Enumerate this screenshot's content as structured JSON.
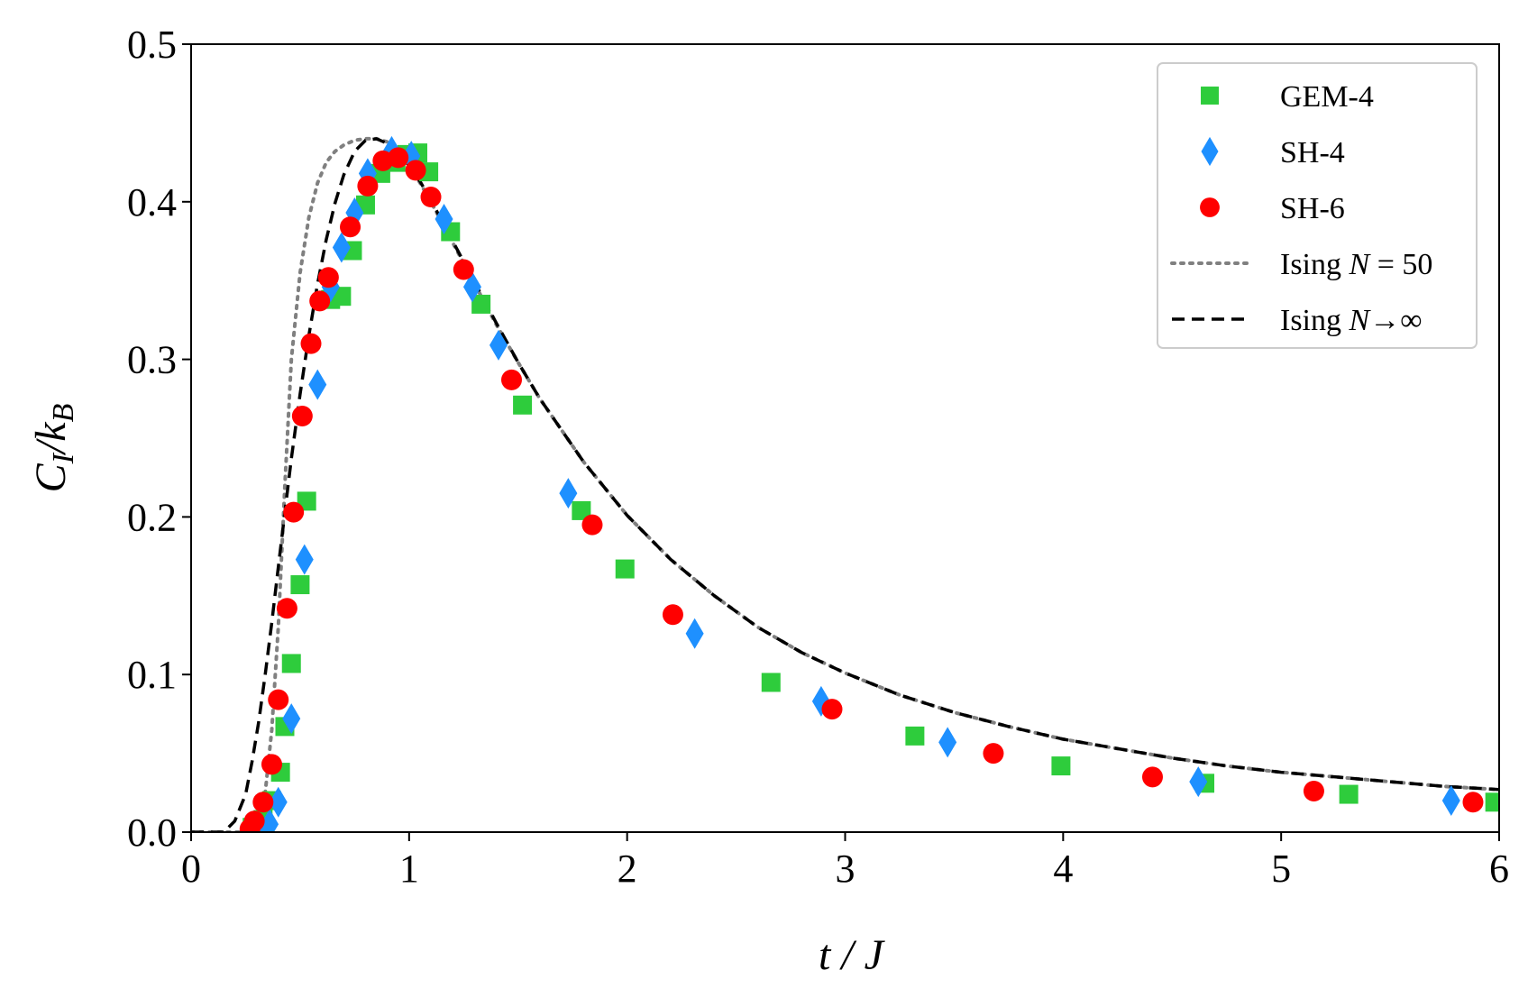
{
  "chart_data": {
    "type": "scatter",
    "xlabel": "t / J",
    "ylabel": "C_I / k_B",
    "xlim": [
      0,
      6
    ],
    "ylim": [
      0,
      0.5
    ],
    "x_ticks": [
      "0",
      "1",
      "2",
      "3",
      "4",
      "5",
      "6"
    ],
    "y_ticks": [
      "0.0",
      "0.1",
      "0.2",
      "0.3",
      "0.4",
      "0.5"
    ],
    "grid": false,
    "legend_position": "top-right",
    "series": [
      {
        "name": "GEM-4",
        "kind": "markers",
        "marker": "square",
        "color": "#2ecc3c",
        "x": [
          0.28,
          0.33,
          0.37,
          0.41,
          0.43,
          0.46,
          0.5,
          0.53,
          0.64,
          0.69,
          0.74,
          0.8,
          0.87,
          0.94,
          0.99,
          1.04,
          1.09,
          1.19,
          1.33,
          1.52,
          1.79,
          1.99,
          2.66,
          3.32,
          3.99,
          4.65,
          5.31,
          5.98
        ],
        "y": [
          0.003,
          0.008,
          0.02,
          0.038,
          0.067,
          0.107,
          0.157,
          0.21,
          0.338,
          0.34,
          0.369,
          0.398,
          0.418,
          0.425,
          0.43,
          0.431,
          0.419,
          0.381,
          0.335,
          0.271,
          0.204,
          0.167,
          0.095,
          0.061,
          0.042,
          0.031,
          0.024,
          0.019
        ]
      },
      {
        "name": "SH-4",
        "kind": "markers",
        "marker": "diamond",
        "color": "#1e90ff",
        "x": [
          0.32,
          0.36,
          0.4,
          0.46,
          0.52,
          0.58,
          0.64,
          0.69,
          0.75,
          0.81,
          0.92,
          1.01,
          1.16,
          1.29,
          1.41,
          1.73,
          2.31,
          2.89,
          3.47,
          4.62,
          5.78
        ],
        "y": [
          0.002,
          0.005,
          0.019,
          0.072,
          0.173,
          0.284,
          0.346,
          0.371,
          0.393,
          0.418,
          0.432,
          0.429,
          0.389,
          0.346,
          0.309,
          0.215,
          0.126,
          0.083,
          0.057,
          0.032,
          0.02
        ]
      },
      {
        "name": "SH-6",
        "kind": "markers",
        "marker": "circle",
        "color": "#ff0000",
        "x": [
          0.27,
          0.29,
          0.33,
          0.37,
          0.4,
          0.44,
          0.47,
          0.51,
          0.55,
          0.59,
          0.63,
          0.73,
          0.81,
          0.88,
          0.95,
          1.03,
          1.1,
          1.25,
          1.47,
          1.84,
          2.21,
          2.94,
          3.68,
          4.41,
          5.15,
          5.88
        ],
        "y": [
          0.002,
          0.007,
          0.019,
          0.043,
          0.084,
          0.142,
          0.203,
          0.264,
          0.31,
          0.337,
          0.352,
          0.384,
          0.41,
          0.426,
          0.428,
          0.42,
          0.403,
          0.357,
          0.287,
          0.195,
          0.138,
          0.078,
          0.05,
          0.035,
          0.026,
          0.019
        ]
      },
      {
        "name": "Ising N = 50",
        "kind": "line",
        "style": "dotted",
        "color": "#808080",
        "x": [
          0.0,
          0.15,
          0.22,
          0.28,
          0.31,
          0.34,
          0.37,
          0.4,
          0.43,
          0.46,
          0.5,
          0.54,
          0.58,
          0.62,
          0.66,
          0.7,
          0.75,
          0.8,
          0.85,
          0.9,
          0.95,
          1.0,
          1.05,
          1.1,
          1.2,
          1.3,
          1.4,
          1.5,
          1.6,
          1.8,
          2.0,
          2.2,
          2.4,
          2.6,
          2.8,
          3.0,
          3.25,
          3.5,
          3.75,
          4.0,
          4.25,
          4.5,
          4.75,
          5.0,
          5.25,
          5.5,
          5.75,
          6.0
        ],
        "y": [
          0.0,
          0.0,
          0.0,
          0.002,
          0.008,
          0.025,
          0.065,
          0.13,
          0.22,
          0.3,
          0.355,
          0.39,
          0.412,
          0.425,
          0.432,
          0.436,
          0.439,
          0.44,
          0.44,
          0.438,
          0.432,
          0.423,
          0.412,
          0.4,
          0.374,
          0.348,
          0.322,
          0.298,
          0.275,
          0.235,
          0.201,
          0.173,
          0.15,
          0.13,
          0.114,
          0.101,
          0.087,
          0.076,
          0.067,
          0.059,
          0.053,
          0.047,
          0.042,
          0.038,
          0.035,
          0.032,
          0.029,
          0.027
        ]
      },
      {
        "name": "Ising N→∞",
        "kind": "line",
        "style": "dashed",
        "color": "#000000",
        "x": [
          0.0,
          0.15,
          0.2,
          0.25,
          0.28,
          0.31,
          0.34,
          0.37,
          0.4,
          0.43,
          0.46,
          0.5,
          0.54,
          0.58,
          0.62,
          0.66,
          0.7,
          0.75,
          0.8,
          0.85,
          0.9,
          0.95,
          1.0,
          1.05,
          1.1,
          1.2,
          1.3,
          1.4,
          1.5,
          1.6,
          1.8,
          2.0,
          2.2,
          2.4,
          2.6,
          2.8,
          3.0,
          3.25,
          3.5,
          3.75,
          4.0,
          4.25,
          4.5,
          4.75,
          5.0,
          5.25,
          5.5,
          5.75,
          6.0
        ],
        "y": [
          0.0,
          0.0,
          0.007,
          0.024,
          0.045,
          0.07,
          0.1,
          0.133,
          0.168,
          0.203,
          0.237,
          0.278,
          0.315,
          0.348,
          0.376,
          0.399,
          0.417,
          0.432,
          0.439,
          0.44,
          0.437,
          0.431,
          0.423,
          0.413,
          0.401,
          0.375,
          0.349,
          0.323,
          0.298,
          0.275,
          0.235,
          0.201,
          0.173,
          0.15,
          0.13,
          0.114,
          0.101,
          0.087,
          0.076,
          0.067,
          0.059,
          0.053,
          0.047,
          0.042,
          0.038,
          0.035,
          0.032,
          0.029,
          0.027
        ]
      }
    ]
  }
}
